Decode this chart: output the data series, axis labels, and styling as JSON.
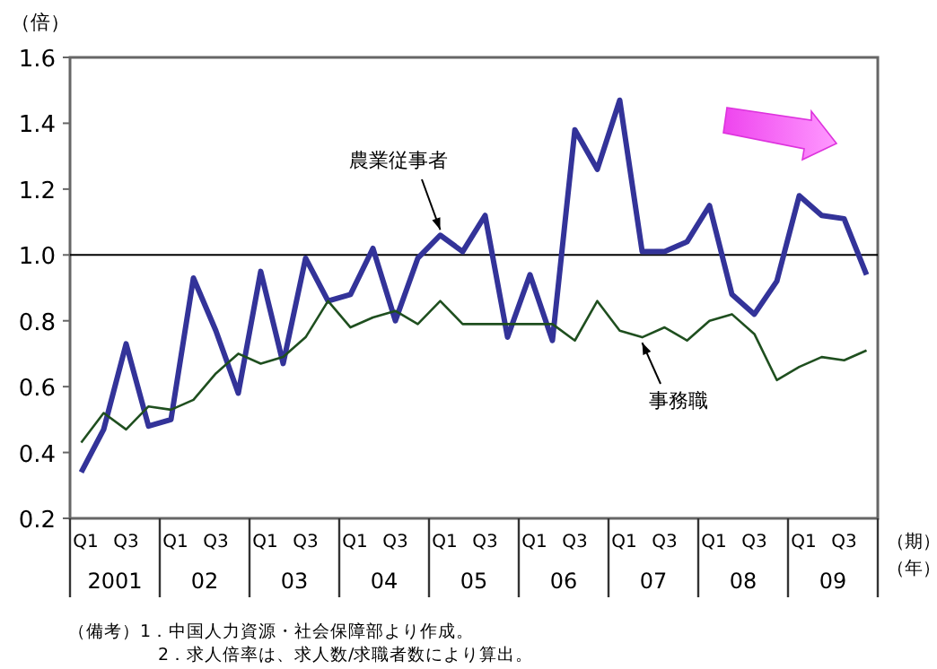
{
  "chart_data": {
    "type": "line",
    "ylabel": "（倍）",
    "xlabel": "（期）",
    "categories": [
      "Q1",
      null,
      "Q3",
      null,
      "Q1",
      null,
      "Q3",
      null,
      "Q1",
      null,
      "Q3",
      null,
      "Q1",
      null,
      "Q3",
      null,
      "Q1",
      null,
      "Q3",
      null,
      "Q1",
      null,
      "Q3",
      null,
      "Q1",
      null,
      "Q3",
      null,
      "Q1",
      null,
      "Q3",
      null,
      "Q1",
      null,
      "Q3",
      null
    ],
    "series": [
      {
        "name": "農業従事者",
        "color": "#333399",
        "values": [
          0.34,
          0.47,
          0.73,
          0.48,
          0.5,
          0.93,
          0.77,
          0.58,
          0.95,
          0.67,
          0.99,
          0.86,
          0.88,
          1.02,
          0.8,
          0.99,
          1.06,
          1.01,
          1.12,
          0.75,
          0.94,
          0.74,
          1.38,
          1.26,
          1.47,
          1.01,
          1.01,
          1.04,
          1.15,
          0.88,
          0.82,
          0.92,
          1.18,
          1.12,
          1.11,
          0.94
        ]
      },
      {
        "name": "事務職",
        "color": "#1f4f1f",
        "values": [
          0.43,
          0.52,
          0.47,
          0.54,
          0.53,
          0.56,
          0.64,
          0.7,
          0.67,
          0.69,
          0.75,
          0.86,
          0.78,
          0.81,
          0.83,
          0.79,
          0.86,
          0.79,
          0.79,
          0.79,
          0.79,
          0.79,
          0.74,
          0.86,
          0.77,
          0.75,
          0.78,
          0.74,
          0.8,
          0.82,
          0.76,
          0.62,
          0.66,
          0.69,
          0.68,
          0.71
        ]
      }
    ],
    "ylim": [
      0.2,
      1.6
    ],
    "yticks": [
      0.2,
      0.4,
      0.6,
      0.8,
      {
        "value": 1.0,
        "label": "1.0"
      },
      1.2,
      1.4,
      1.6
    ],
    "ref_lines": [
      {
        "axis": "y",
        "value": 1.0,
        "color": "#000000"
      }
    ],
    "grid": false,
    "legend": false,
    "marker": "none",
    "line_style": "solid",
    "annotations": [
      "2001",
      "02",
      "03",
      "04",
      "05",
      "06",
      "07",
      "08",
      "09",
      "（年）",
      "（備考）1．中国人力資源・社会保障部より作成。",
      "2．求人倍率は、求人数/求職者数により算出。"
    ]
  }
}
